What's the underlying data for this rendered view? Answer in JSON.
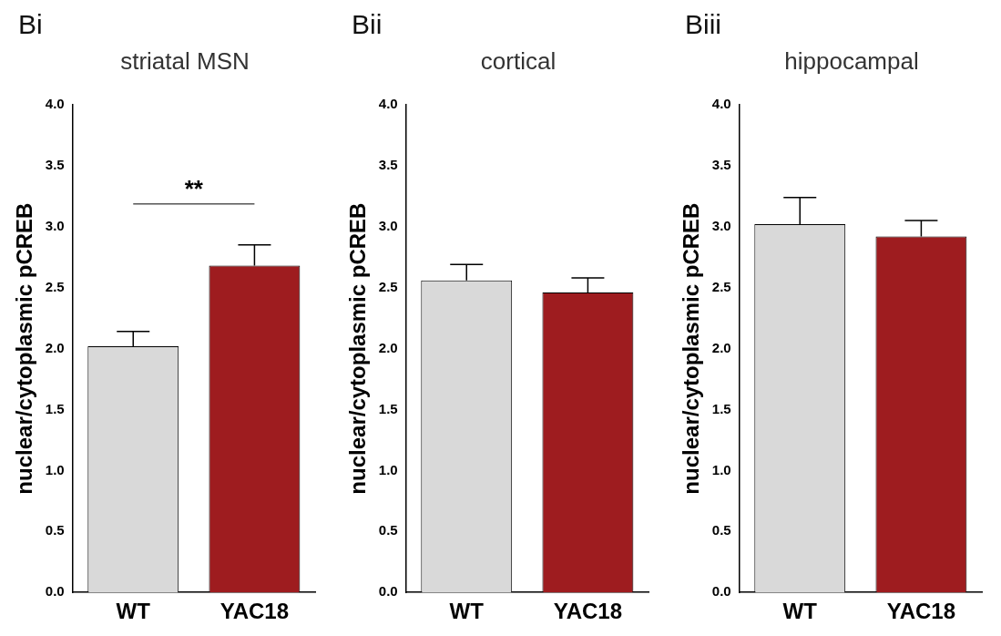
{
  "chart_data": [
    {
      "type": "bar",
      "title": "Bi",
      "subtitle": "striatal MSN",
      "ylabel": "nuclear/cytoplasmic pCREB",
      "categories": [
        "WT",
        "YAC18"
      ],
      "values": [
        2.02,
        2.68
      ],
      "colors": [
        "#d9d9d9",
        "#9e1c1f"
      ],
      "errors": [
        0.12,
        0.17
      ],
      "ylim": [
        0,
        4
      ],
      "yticks": [
        {
          "value": 0,
          "label": "0.0"
        },
        {
          "value": 0.5,
          "label": "0.5"
        },
        {
          "value": 1,
          "label": "1.0"
        },
        {
          "value": 1.5,
          "label": "1.5"
        },
        {
          "value": 2,
          "label": "2.0"
        },
        {
          "value": 2.5,
          "label": "2.5"
        },
        {
          "value": 3,
          "label": "3.0"
        },
        {
          "value": 3.5,
          "label": "3.5"
        },
        {
          "value": 4,
          "label": "4.0"
        }
      ],
      "annotations": [
        "**"
      ],
      "grid": false,
      "legend": false
    },
    {
      "type": "bar",
      "title": "Bii",
      "subtitle": "cortical",
      "ylabel": "nuclear/cytoplasmic pCREB",
      "categories": [
        "WT",
        "YAC18"
      ],
      "values": [
        2.56,
        2.46
      ],
      "colors": [
        "#d9d9d9",
        "#9e1c1f"
      ],
      "errors": [
        0.13,
        0.12
      ],
      "ylim": [
        0,
        4
      ],
      "yticks": [
        {
          "value": 0,
          "label": "0.0"
        },
        {
          "value": 0.5,
          "label": "0.5"
        },
        {
          "value": 1,
          "label": "1.0"
        },
        {
          "value": 1.5,
          "label": "1.5"
        },
        {
          "value": 2,
          "label": "2.0"
        },
        {
          "value": 2.5,
          "label": "2.5"
        },
        {
          "value": 3,
          "label": "3.0"
        },
        {
          "value": 3.5,
          "label": "3.5"
        },
        {
          "value": 4,
          "label": "4.0"
        }
      ],
      "grid": false,
      "legend": false
    },
    {
      "type": "bar",
      "title": "Biii",
      "subtitle": "hippocampal",
      "ylabel": "nuclear/cytoplasmic pCREB",
      "categories": [
        "WT",
        "YAC18"
      ],
      "values": [
        3.02,
        2.92
      ],
      "colors": [
        "#d9d9d9",
        "#9e1c1f"
      ],
      "errors": [
        0.22,
        0.13
      ],
      "ylim": [
        0,
        4
      ],
      "yticks": [
        {
          "value": 0,
          "label": "0.0"
        },
        {
          "value": 0.5,
          "label": "0.5"
        },
        {
          "value": 1,
          "label": "1.0"
        },
        {
          "value": 1.5,
          "label": "1.5"
        },
        {
          "value": 2,
          "label": "2.0"
        },
        {
          "value": 2.5,
          "label": "2.5"
        },
        {
          "value": 3,
          "label": "3.0"
        },
        {
          "value": 3.5,
          "label": "3.5"
        },
        {
          "value": 4,
          "label": "4.0"
        }
      ],
      "grid": false,
      "legend": false
    }
  ]
}
